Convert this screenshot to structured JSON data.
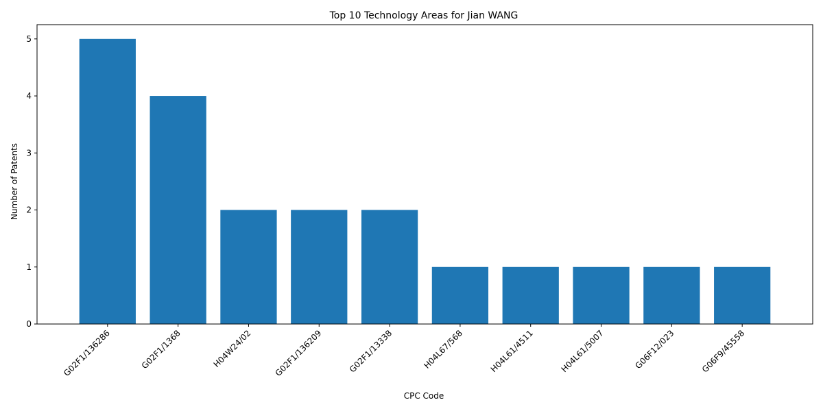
{
  "chart_data": {
    "type": "bar",
    "title": "Top 10 Technology Areas for Jian WANG",
    "xlabel": "CPC Code",
    "ylabel": "Number of Patents",
    "categories": [
      "G02F1/136286",
      "G02F1/1368",
      "H04W24/02",
      "G02F1/136209",
      "G02F1/13338",
      "H04L67/568",
      "H04L61/4511",
      "H04L61/5007",
      "G06F12/023",
      "G06F9/45558"
    ],
    "values": [
      5,
      4,
      2,
      2,
      2,
      1,
      1,
      1,
      1,
      1
    ],
    "ylim": [
      0,
      5.25
    ],
    "yticks": [
      0,
      1,
      2,
      3,
      4,
      5
    ],
    "grid": false,
    "bar_color": "#1f77b4"
  }
}
